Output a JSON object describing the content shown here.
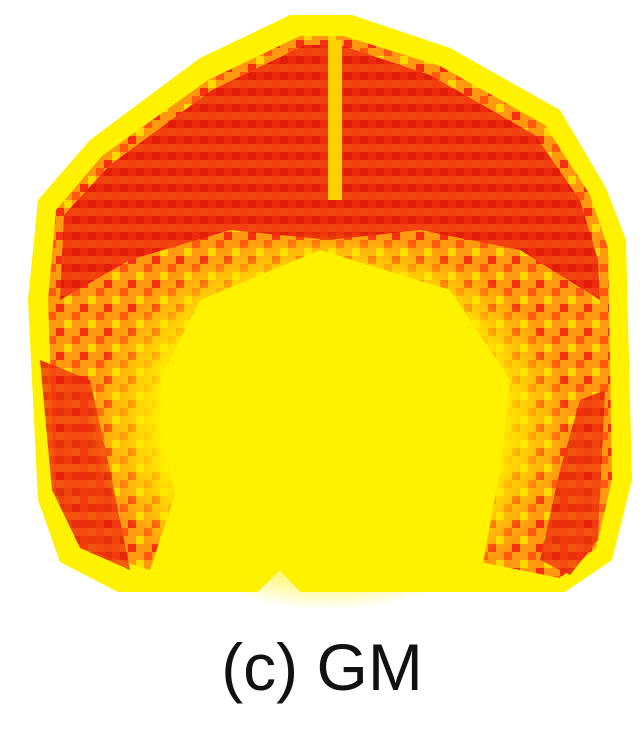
{
  "caption": "(c) GM"
}
